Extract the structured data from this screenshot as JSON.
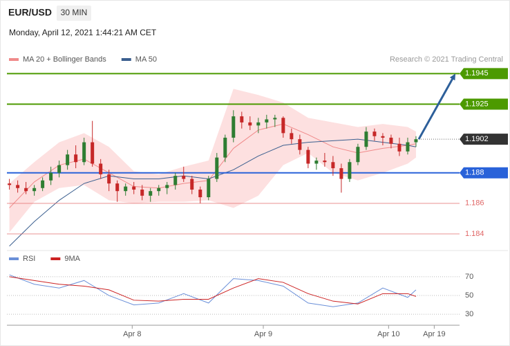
{
  "header": {
    "symbol": "EUR/USD",
    "timeframe": "30 MIN",
    "datetime": "Monday, April 12, 2021 1:44:21 AM CET"
  },
  "chart_data": [
    {
      "type": "candlestick",
      "source": "Research © 2021 Trading Central",
      "xlim": [
        -0.3,
        54.25
      ],
      "xticks": [
        {
          "value": 14.8,
          "label": "Apr 8"
        },
        {
          "value": 30.6,
          "label": "Apr 9"
        },
        {
          "value": 45.7,
          "label": "Apr 10"
        },
        {
          "value": 51.2,
          "label": "Apr 19"
        }
      ],
      "ylim": [
        1.183,
        1.1966
      ],
      "up_color": "#2e7d32",
      "down_color": "#c62828",
      "candles": {
        "open": [
          1.1873,
          1.1872,
          1.187,
          1.1868,
          1.187,
          1.1875,
          1.188,
          1.1885,
          1.1892,
          1.1887,
          1.19,
          1.1886,
          1.1879,
          1.1873,
          1.1868,
          1.1871,
          1.1869,
          1.1865,
          1.1868,
          1.187,
          1.1872,
          1.1878,
          1.1876,
          1.1869,
          1.1864,
          1.1876,
          1.189,
          1.1903,
          1.1917,
          1.1913,
          1.1911,
          1.1913,
          1.1915,
          1.1916,
          1.1906,
          1.1902,
          1.1895,
          1.1886,
          1.1888,
          1.1887,
          1.1883,
          1.1876,
          1.1887,
          1.1897,
          1.1907,
          1.1904,
          1.1903,
          1.1899,
          1.1894,
          1.19
        ],
        "high": [
          1.1876,
          1.1875,
          1.1874,
          1.1872,
          1.1877,
          1.1884,
          1.1888,
          1.1895,
          1.1898,
          1.1903,
          1.1914,
          1.1889,
          1.1882,
          1.1875,
          1.1873,
          1.1874,
          1.1872,
          1.187,
          1.1872,
          1.1874,
          1.188,
          1.1884,
          1.1878,
          1.1871,
          1.1878,
          1.1893,
          1.1905,
          1.1921,
          1.192,
          1.1917,
          1.1916,
          1.1918,
          1.1918,
          1.1917,
          1.1909,
          1.1905,
          1.1897,
          1.189,
          1.1893,
          1.1891,
          1.1886,
          1.1889,
          1.1899,
          1.191,
          1.1909,
          1.1906,
          1.1905,
          1.1903,
          1.1903,
          1.1904
        ],
        "low": [
          1.1869,
          1.1867,
          1.1866,
          1.1865,
          1.1868,
          1.1872,
          1.1877,
          1.1882,
          1.1883,
          1.1885,
          1.1884,
          1.1876,
          1.1868,
          1.1861,
          1.1865,
          1.1866,
          1.1862,
          1.1861,
          1.1865,
          1.1866,
          1.1869,
          1.1874,
          1.1866,
          1.186,
          1.1862,
          1.1874,
          1.1887,
          1.19,
          1.1909,
          1.1908,
          1.1906,
          1.1909,
          1.191,
          1.1903,
          1.1899,
          1.1892,
          1.1883,
          1.1882,
          1.1884,
          1.1878,
          1.1867,
          1.1874,
          1.1885,
          1.1895,
          1.1901,
          1.1898,
          1.1896,
          1.1891,
          1.1892,
          1.1897
        ],
        "close": [
          1.1872,
          1.187,
          1.1868,
          1.187,
          1.1875,
          1.188,
          1.1885,
          1.1892,
          1.1887,
          1.19,
          1.1886,
          1.1879,
          1.1873,
          1.1868,
          1.1871,
          1.1869,
          1.1865,
          1.1868,
          1.187,
          1.1872,
          1.1878,
          1.1876,
          1.1869,
          1.1864,
          1.1876,
          1.189,
          1.1903,
          1.1917,
          1.1913,
          1.1911,
          1.1913,
          1.1915,
          1.1916,
          1.1906,
          1.1902,
          1.1895,
          1.1886,
          1.1888,
          1.1887,
          1.1883,
          1.1876,
          1.1887,
          1.1897,
          1.1907,
          1.1904,
          1.1903,
          1.1899,
          1.1894,
          1.19,
          1.1902
        ]
      },
      "series": [
        {
          "name": "MA 20 + Bollinger Bands",
          "color": "#f08a8a",
          "band_color": "#fde0e0",
          "x": [
            0,
            3,
            6,
            9,
            12,
            15,
            18,
            21,
            24,
            27,
            30,
            33,
            36,
            39,
            42,
            45,
            48,
            49
          ],
          "values": [
            1.1857,
            1.1874,
            1.1885,
            1.1889,
            1.188,
            1.1871,
            1.187,
            1.1873,
            1.1875,
            1.1896,
            1.1908,
            1.1912,
            1.1905,
            1.1897,
            1.1893,
            1.1896,
            1.1898,
            1.1899
          ],
          "upper": [
            1.1873,
            1.1887,
            1.19,
            1.1906,
            1.1897,
            1.1881,
            1.1879,
            1.1884,
            1.1888,
            1.1935,
            1.1931,
            1.1926,
            1.1916,
            1.1913,
            1.191,
            1.1912,
            1.191,
            1.1907
          ],
          "lower": [
            1.1841,
            1.1861,
            1.187,
            1.1872,
            1.1862,
            1.186,
            1.1861,
            1.1861,
            1.1862,
            1.1857,
            1.1865,
            1.1885,
            1.1893,
            1.188,
            1.1875,
            1.188,
            1.1886,
            1.189
          ]
        },
        {
          "name": "MA 50",
          "color": "#3b5f8f",
          "x": [
            0,
            3,
            6,
            9,
            12,
            15,
            18,
            21,
            24,
            27,
            30,
            33,
            36,
            39,
            42,
            45,
            48,
            49
          ],
          "values": [
            1.1832,
            1.1848,
            1.1862,
            1.1873,
            1.1878,
            1.1876,
            1.1876,
            1.1878,
            1.1876,
            1.1882,
            1.1891,
            1.1898,
            1.19,
            1.1901,
            1.1902,
            1.19,
            1.1898,
            1.1897
          ]
        }
      ],
      "levels": [
        {
          "value": 1.1945,
          "color": "#4c9a00",
          "style": "tag"
        },
        {
          "value": 1.1925,
          "color": "#4c9a00",
          "style": "tag"
        },
        {
          "value": 1.1902,
          "color": "#333333",
          "style": "current"
        },
        {
          "value": 1.188,
          "color": "#2962d9",
          "style": "tag"
        },
        {
          "value": 1.186,
          "color": "#e06666",
          "style": "text"
        },
        {
          "value": 1.184,
          "color": "#e06666",
          "style": "text"
        }
      ],
      "arrow_color": "#2d5f9a"
    },
    {
      "type": "line",
      "ylim": [
        22,
        81
      ],
      "yticks": [
        70,
        50,
        30
      ],
      "series": [
        {
          "name": "RSI",
          "color": "#6a8fd8",
          "x": [
            0,
            3,
            6,
            9,
            12,
            15,
            18,
            21,
            24,
            27,
            30,
            33,
            36,
            39,
            42,
            45,
            48,
            49
          ],
          "values": [
            72,
            62,
            58,
            66,
            50,
            40,
            42,
            52,
            42,
            68,
            66,
            60,
            42,
            38,
            42,
            58,
            48,
            56
          ]
        },
        {
          "name": "9MA",
          "color": "#cc2222",
          "x": [
            0,
            3,
            6,
            9,
            12,
            15,
            18,
            21,
            24,
            27,
            30,
            33,
            36,
            39,
            42,
            45,
            48,
            49
          ],
          "values": [
            70,
            66,
            62,
            60,
            56,
            45,
            44,
            46,
            46,
            58,
            68,
            64,
            52,
            44,
            41,
            52,
            52,
            49
          ]
        }
      ]
    }
  ]
}
